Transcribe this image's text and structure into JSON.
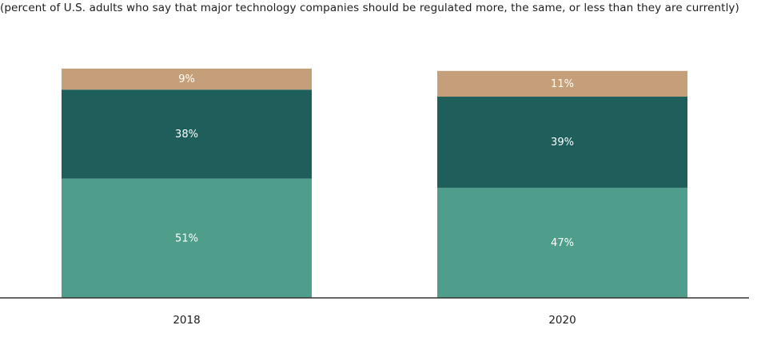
{
  "chart_data": {
    "type": "bar",
    "stacked": true,
    "subtitle": "(percent of U.S. adults who say that major technology companies should be regulated more, the same, or less than they are currently)",
    "categories": [
      "2018",
      "2020"
    ],
    "series": [
      {
        "values": [
          51,
          47
        ],
        "labels": [
          "51%",
          "47%"
        ],
        "color": "#4f9e8c"
      },
      {
        "values": [
          38,
          39
        ],
        "labels": [
          "38%",
          "39%"
        ],
        "color": "#1f5f5b"
      },
      {
        "values": [
          9,
          11
        ],
        "labels": [
          "9%",
          "11%"
        ],
        "color": "#c49f79"
      }
    ],
    "ylim": [
      0,
      100
    ],
    "grid": false,
    "legend": "none"
  }
}
